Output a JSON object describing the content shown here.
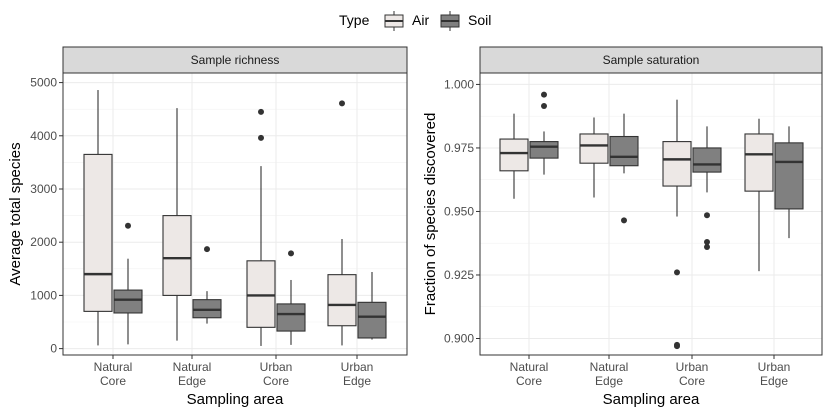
{
  "legend": {
    "title": "Type",
    "items": [
      {
        "label": "Air",
        "color": "#EDE8E6"
      },
      {
        "label": "Soil",
        "color": "#808080"
      }
    ]
  },
  "chart_data": [
    {
      "type": "boxplot",
      "title": "Sample richness",
      "xlabel": "Sampling area",
      "ylabel": "Average total species",
      "ylim": [
        -120,
        5180
      ],
      "yticks": [
        0,
        1000,
        2000,
        3000,
        4000,
        5000
      ],
      "ytick_labels": [
        "0",
        "1000",
        "2000",
        "3000",
        "4000",
        "5000"
      ],
      "categories": [
        [
          "Natural",
          "Core"
        ],
        [
          "Natural",
          "Edge"
        ],
        [
          "Urban",
          "Core"
        ],
        [
          "Urban",
          "Edge"
        ]
      ],
      "series": [
        {
          "name": "Air",
          "boxes": [
            {
              "min": 60,
              "q1": 700,
              "median": 1400,
              "q3": 3650,
              "max": 4860,
              "outliers": []
            },
            {
              "min": 150,
              "q1": 1000,
              "median": 1700,
              "q3": 2500,
              "max": 4520,
              "outliers": []
            },
            {
              "min": 50,
              "q1": 400,
              "median": 1000,
              "q3": 1650,
              "max": 3430,
              "outliers": [
                3960,
                4450
              ]
            },
            {
              "min": 60,
              "q1": 430,
              "median": 820,
              "q3": 1390,
              "max": 2060,
              "outliers": [
                4610
              ]
            }
          ]
        },
        {
          "name": "Soil",
          "boxes": [
            {
              "min": 80,
              "q1": 670,
              "median": 920,
              "q3": 1100,
              "max": 1690,
              "outliers": [
                2310
              ]
            },
            {
              "min": 470,
              "q1": 580,
              "median": 730,
              "q3": 920,
              "max": 1080,
              "outliers": [
                1870
              ]
            },
            {
              "min": 70,
              "q1": 330,
              "median": 650,
              "q3": 840,
              "max": 1290,
              "outliers": [
                1790
              ]
            },
            {
              "min": 170,
              "q1": 200,
              "median": 600,
              "q3": 870,
              "max": 1440,
              "outliers": []
            }
          ]
        }
      ]
    },
    {
      "type": "boxplot",
      "title": "Sample saturation",
      "xlabel": "Sampling area",
      "ylabel": "Fraction of species discovered",
      "ylim": [
        0.8935,
        1.0045
      ],
      "yticks": [
        0.9,
        0.925,
        0.95,
        0.975,
        1.0
      ],
      "ytick_labels": [
        "0.900",
        "0.925",
        "0.950",
        "0.975",
        "1.000"
      ],
      "categories": [
        [
          "Natural",
          "Core"
        ],
        [
          "Natural",
          "Edge"
        ],
        [
          "Urban",
          "Core"
        ],
        [
          "Urban",
          "Edge"
        ]
      ],
      "series": [
        {
          "name": "Air",
          "boxes": [
            {
              "min": 0.955,
              "q1": 0.966,
              "median": 0.973,
              "q3": 0.9785,
              "max": 0.9885,
              "outliers": []
            },
            {
              "min": 0.9555,
              "q1": 0.969,
              "median": 0.976,
              "q3": 0.9805,
              "max": 0.987,
              "outliers": []
            },
            {
              "min": 0.948,
              "q1": 0.96,
              "median": 0.9705,
              "q3": 0.9775,
              "max": 0.994,
              "outliers": [
                0.926,
                0.8975,
                0.897
              ]
            },
            {
              "min": 0.9265,
              "q1": 0.958,
              "median": 0.9725,
              "q3": 0.9805,
              "max": 0.9865,
              "outliers": []
            }
          ]
        },
        {
          "name": "Soil",
          "boxes": [
            {
              "min": 0.9645,
              "q1": 0.971,
              "median": 0.9755,
              "q3": 0.9775,
              "max": 0.9815,
              "outliers": [
                0.9915,
                0.996
              ]
            },
            {
              "min": 0.965,
              "q1": 0.968,
              "median": 0.9715,
              "q3": 0.9795,
              "max": 0.9885,
              "outliers": [
                0.9465
              ]
            },
            {
              "min": 0.9575,
              "q1": 0.9655,
              "median": 0.9685,
              "q3": 0.975,
              "max": 0.9835,
              "outliers": [
                0.9485,
                0.938,
                0.936
              ]
            },
            {
              "min": 0.9395,
              "q1": 0.951,
              "median": 0.9695,
              "q3": 0.977,
              "max": 0.9835,
              "outliers": []
            }
          ]
        }
      ]
    }
  ]
}
